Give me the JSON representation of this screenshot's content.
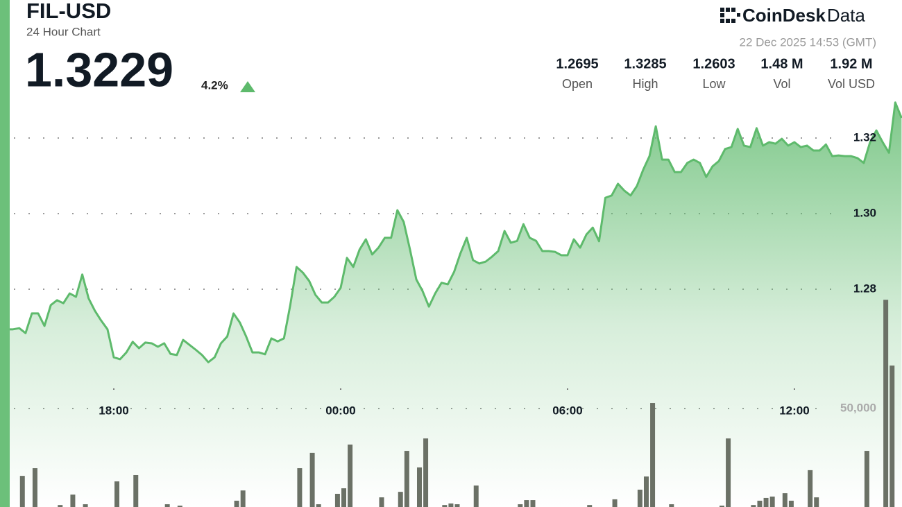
{
  "chart_data": {
    "type": "line",
    "title": "FIL-USD",
    "subtitle": "24 Hour Chart",
    "categories": [
      null,
      null,
      null,
      null,
      null,
      null,
      null,
      null,
      null,
      null,
      null,
      null,
      null,
      null,
      null,
      null,
      null,
      "18:00",
      null,
      null,
      null,
      null,
      null,
      null,
      null,
      null,
      null,
      null,
      null,
      null,
      null,
      null,
      null,
      null,
      null,
      null,
      null,
      null,
      null,
      null,
      null,
      null,
      null,
      null,
      null,
      null,
      null,
      null,
      null,
      null,
      null,
      null,
      null,
      "00:00",
      null,
      null,
      null,
      null,
      null,
      null,
      null,
      null,
      null,
      null,
      null,
      null,
      null,
      null,
      null,
      null,
      null,
      null,
      null,
      null,
      null,
      null,
      null,
      null,
      null,
      null,
      null,
      null,
      null,
      null,
      null,
      null,
      null,
      null,
      null,
      "06:00",
      null,
      null,
      null,
      null,
      null,
      null,
      null,
      null,
      null,
      null,
      null,
      null,
      null,
      null,
      null,
      null,
      null,
      null,
      null,
      null,
      null,
      null,
      null,
      null,
      null,
      null,
      null,
      null,
      null,
      null,
      null,
      null,
      null,
      null,
      null,
      "12:00",
      null,
      null,
      null,
      null,
      null,
      null,
      null,
      null,
      null,
      null,
      null,
      null,
      null,
      null,
      null,
      null,
      null
    ],
    "series": [
      {
        "color": "#5eba6c",
        "values": [
          1.2694,
          1.2694,
          1.2697,
          1.2684,
          1.2736,
          1.2736,
          1.2703,
          1.2758,
          1.2771,
          1.2763,
          1.2789,
          1.278,
          1.2839,
          1.2776,
          1.2743,
          1.2717,
          1.2694,
          1.262,
          1.2615,
          1.2633,
          1.2661,
          1.2644,
          1.2659,
          1.2657,
          1.2648,
          1.2657,
          1.2629,
          1.2626,
          1.2666,
          1.2653,
          1.264,
          1.2626,
          1.2607,
          1.262,
          1.2657,
          1.2675,
          1.2736,
          1.2712,
          1.2675,
          1.2633,
          1.2633,
          1.2628,
          1.267,
          1.2662,
          1.267,
          1.2758,
          1.2859,
          1.2844,
          1.2822,
          1.2785,
          1.2765,
          1.2765,
          1.278,
          1.2804,
          1.2883,
          1.2859,
          1.2905,
          1.2932,
          1.2892,
          1.291,
          1.2936,
          1.2936,
          1.3009,
          1.2978,
          1.2905,
          1.2826,
          1.2795,
          1.2754,
          1.2789,
          1.2817,
          1.2813,
          1.2846,
          1.2895,
          1.2936,
          1.2877,
          1.2868,
          1.2873,
          1.2886,
          1.2901,
          1.2954,
          1.2923,
          1.2928,
          1.2972,
          1.2936,
          1.2928,
          1.2901,
          1.2901,
          1.2899,
          1.289,
          1.289,
          1.2932,
          1.291,
          1.2945,
          1.2963,
          1.2927,
          1.3042,
          1.3048,
          1.3079,
          1.3061,
          1.3048,
          1.3073,
          1.3116,
          1.3152,
          1.3231,
          1.3143,
          1.3143,
          1.311,
          1.311,
          1.3134,
          1.3143,
          1.3134,
          1.3097,
          1.3125,
          1.3139,
          1.3171,
          1.3176,
          1.3224,
          1.318,
          1.3176,
          1.3226,
          1.318,
          1.3189,
          1.3185,
          1.3198,
          1.318,
          1.3189,
          1.3176,
          1.318,
          1.3167,
          1.3167,
          1.3183,
          1.3152,
          1.3154,
          1.3152,
          1.3152,
          1.3147,
          1.3134,
          1.3189,
          1.322,
          1.3189,
          1.3161,
          1.3294,
          1.3253
        ]
      },
      {
        "type": "bar",
        "axis": "y2",
        "color": "#6b7166",
        "values": [
          0,
          0,
          15800,
          0,
          19700,
          0,
          0,
          0,
          1000,
          0,
          6300,
          0,
          1400,
          0,
          0,
          0,
          0,
          13000,
          0,
          0,
          16200,
          0,
          0,
          0,
          0,
          1400,
          0,
          700,
          0,
          0,
          0,
          0,
          0,
          0,
          0,
          0,
          3200,
          8400,
          0,
          0,
          0,
          0,
          0,
          0,
          0,
          0,
          19700,
          0,
          27500,
          1400,
          0,
          0,
          6700,
          9500,
          31700,
          0,
          0,
          0,
          0,
          4900,
          0,
          0,
          7700,
          28500,
          0,
          20100,
          34800,
          0,
          0,
          1000,
          1800,
          1400,
          0,
          0,
          10900,
          0,
          0,
          0,
          0,
          0,
          0,
          1400,
          3500,
          3500,
          0,
          0,
          0,
          0,
          0,
          0,
          0,
          0,
          1000,
          0,
          0,
          0,
          3900,
          0,
          0,
          0,
          8800,
          15500,
          52800,
          0,
          0,
          1400,
          0,
          0,
          0,
          0,
          0,
          0,
          0,
          700,
          34800,
          0,
          0,
          0,
          1000,
          3200,
          4600,
          5300,
          0,
          7000,
          3200,
          0,
          0,
          18700,
          4900,
          0,
          0,
          0,
          0,
          0,
          0,
          0,
          28500,
          0,
          0,
          105200,
          71800,
          0,
          0
        ]
      }
    ],
    "ylim": [
      1.2224,
      1.33
    ],
    "yticks": [
      1.28,
      {
        "value": 1.3,
        "label": "1.30"
      },
      1.32
    ],
    "y2lim": [
      0,
      206500
    ],
    "y2ticks": [
      {
        "value": 50000,
        "label": "50,000"
      }
    ],
    "grid": true
  },
  "header": {
    "price": "1.3229",
    "change": "4.2%"
  },
  "logo": {
    "name": "CoinDesk",
    "suffix": "Data"
  },
  "timestamp": "22 Dec 2025 14:53 (GMT)",
  "stats": [
    {
      "value": "1.2695",
      "label": "Open"
    },
    {
      "value": "1.3285",
      "label": "High"
    },
    {
      "value": "1.2603",
      "label": "Low"
    },
    {
      "value": "1.48 M",
      "label": "Vol"
    },
    {
      "value": "1.92 M",
      "label": "Vol USD"
    }
  ]
}
